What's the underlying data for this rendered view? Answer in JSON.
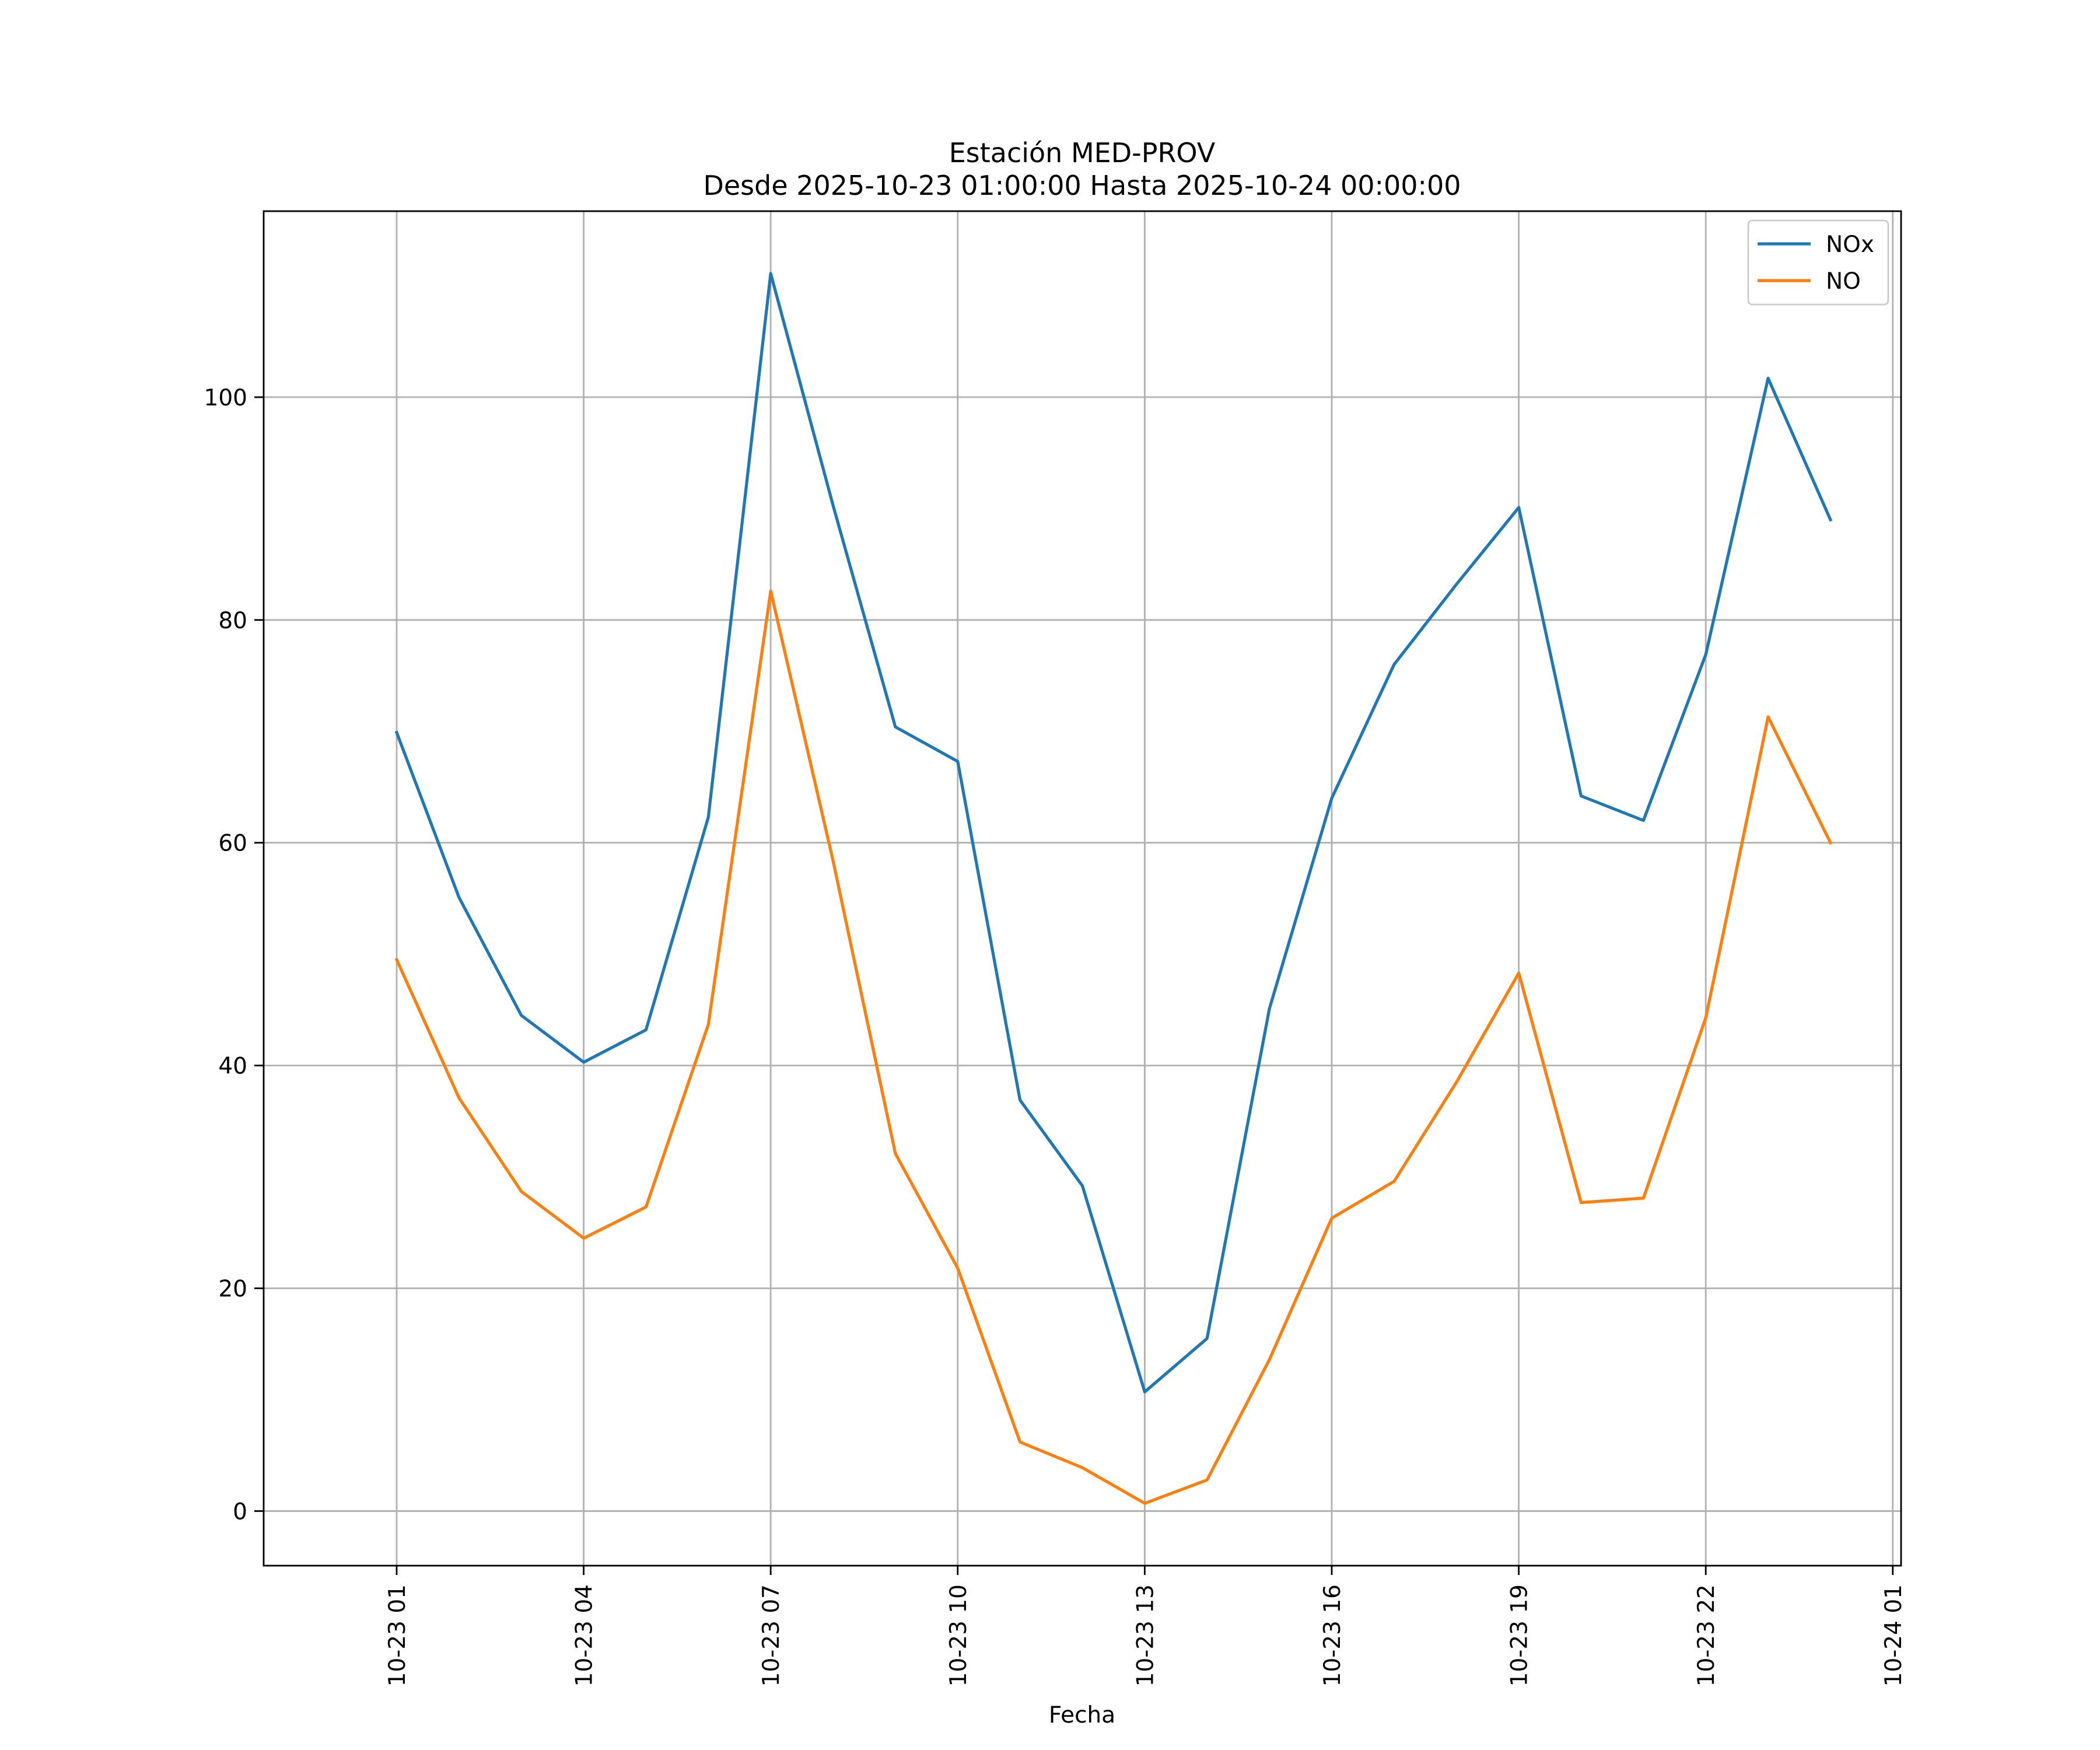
{
  "chart_data": {
    "type": "line",
    "title": "Estación MED-PROV",
    "subtitle": "Desde 2025-10-23 01:00:00 Hasta 2025-10-24 00:00:00",
    "xlabel": "Fecha",
    "ylabel": "",
    "x": [
      "2025-10-23 01:00",
      "2025-10-23 02:00",
      "2025-10-23 03:00",
      "2025-10-23 04:00",
      "2025-10-23 05:00",
      "2025-10-23 06:00",
      "2025-10-23 07:00",
      "2025-10-23 08:00",
      "2025-10-23 09:00",
      "2025-10-23 10:00",
      "2025-10-23 11:00",
      "2025-10-23 12:00",
      "2025-10-23 13:00",
      "2025-10-23 14:00",
      "2025-10-23 15:00",
      "2025-10-23 16:00",
      "2025-10-23 17:00",
      "2025-10-23 18:00",
      "2025-10-23 19:00",
      "2025-10-23 20:00",
      "2025-10-23 21:00",
      "2025-10-23 22:00",
      "2025-10-23 23:00",
      "2025-10-24 00:00"
    ],
    "series": [
      {
        "name": "NOx",
        "color": "#1f77b4",
        "values": [
          69.9,
          55.1,
          44.5,
          40.3,
          43.2,
          62.3,
          111.1,
          90.3,
          70.4,
          67.3,
          36.9,
          29.2,
          10.7,
          15.5,
          45.1,
          64.0,
          76.0,
          83.2,
          90.1,
          64.2,
          62.0,
          76.9,
          101.7,
          89.0
        ]
      },
      {
        "name": "NO",
        "color": "#ff7f0e",
        "values": [
          49.5,
          37.1,
          28.7,
          24.5,
          27.3,
          43.7,
          82.6,
          58.4,
          32.1,
          21.8,
          6.2,
          3.9,
          0.7,
          2.8,
          13.6,
          26.3,
          29.6,
          38.5,
          48.3,
          27.7,
          28.1,
          44.3,
          71.3,
          60.0
        ]
      }
    ],
    "x_ticks": [
      "10-23 01",
      "10-23 04",
      "10-23 07",
      "10-23 10",
      "10-23 13",
      "10-23 16",
      "10-23 19",
      "10-23 22",
      "10-24 01"
    ],
    "y_ticks": [
      "0",
      "20",
      "40",
      "60",
      "80",
      "100"
    ],
    "xlim": [
      "2025-10-22 22:52",
      "2025-10-24 01:08"
    ],
    "ylim": [
      -4.9,
      116.7
    ],
    "grid": true,
    "legend": "top-right"
  }
}
